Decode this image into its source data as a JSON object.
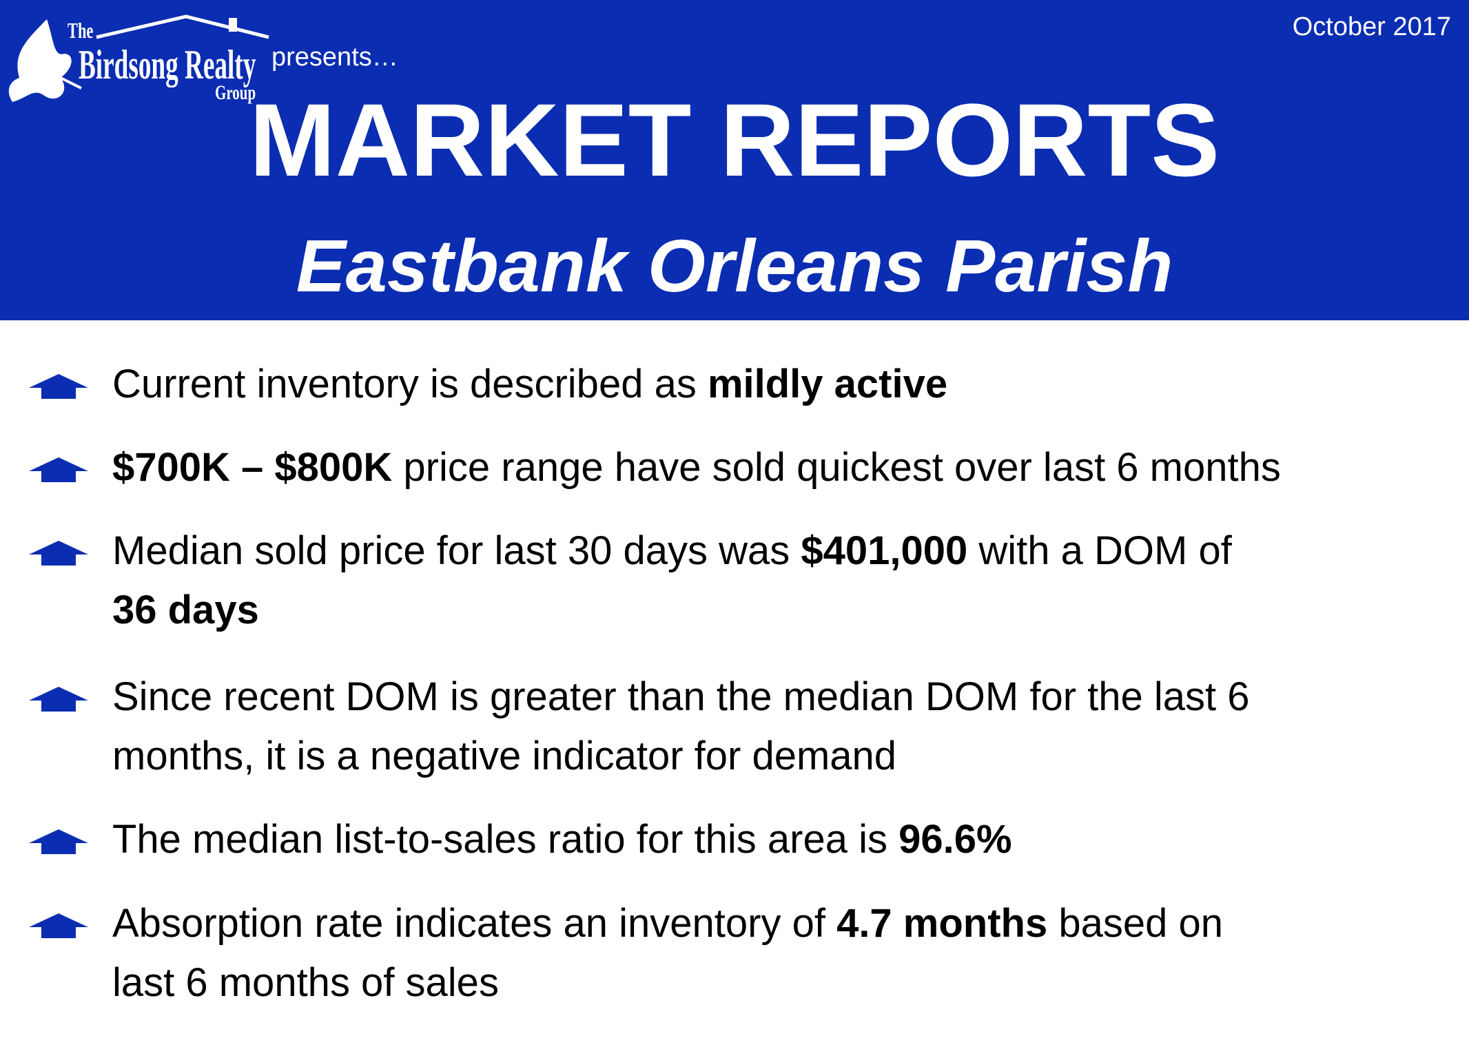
{
  "header": {
    "logo": {
      "the": "The",
      "name": "Birdsong Realty",
      "group": "Group"
    },
    "presents": "presents…",
    "date": "October 2017",
    "title": "MARKET REPORTS",
    "subtitle": "Eastbank Orleans Parish"
  },
  "bullets": [
    {
      "lines": [
        [
          {
            "text": "Current inventory is described as "
          },
          {
            "text": "mildly active",
            "bold": true
          }
        ]
      ]
    },
    {
      "lines": [
        [
          {
            "text": "$700K – $800K",
            "bold": true
          },
          {
            "text": " price range have sold quickest over last 6 months"
          }
        ]
      ]
    },
    {
      "lines": [
        [
          {
            "text": "Median sold price for last 30 days was "
          },
          {
            "text": "$401,000",
            "bold": true
          },
          {
            "text": " with a DOM of"
          }
        ],
        [
          {
            "text": "36 days",
            "bold": true
          }
        ]
      ]
    },
    {
      "lines": [
        [
          {
            "text": "Since recent DOM is greater than the median DOM for the last 6"
          }
        ],
        [
          {
            "text": "months, it is a negative indicator for demand"
          }
        ]
      ]
    },
    {
      "lines": [
        [
          {
            "text": "The median list-to-sales ratio for this area is "
          },
          {
            "text": "96.6%",
            "bold": true
          }
        ]
      ]
    },
    {
      "lines": [
        [
          {
            "text": "Absorption rate indicates an inventory of "
          },
          {
            "text": "4.7 months",
            "bold": true
          },
          {
            "text": " based on"
          }
        ],
        [
          {
            "text": "last 6 months of sales"
          }
        ]
      ]
    }
  ]
}
